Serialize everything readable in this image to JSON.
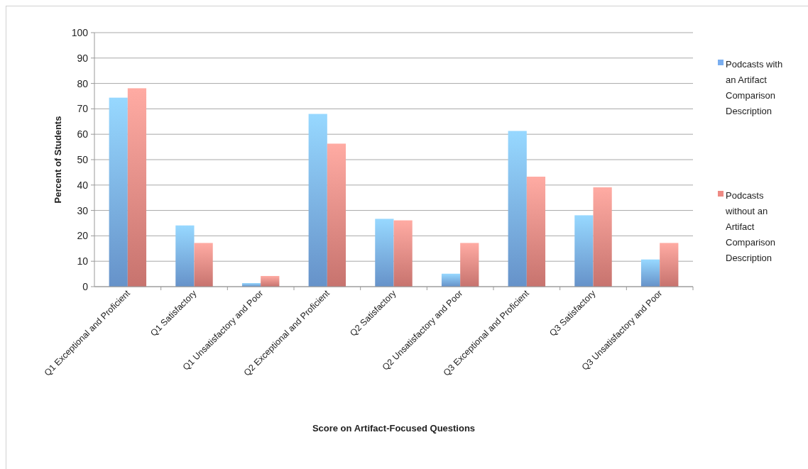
{
  "chart_data": {
    "type": "bar",
    "xlabel": "Score on Artifact-Focused Questions",
    "ylabel": "Percent of Students",
    "categories": [
      "Q1 Exceptional and Proficient",
      "Q1 Satisfactory",
      "Q1 Unsatisfactory and Poor",
      "Q2 Exceptional and Proficient",
      "Q2 Satisfactory",
      "Q2 Unsatisfactory and Poor",
      "Q3 Exceptional and Proficient",
      "Q3 Satisfactory",
      "Q3 Unsatisfactory and Poor"
    ],
    "series": [
      {
        "name": "Podcasts with an Artifact Comparison Description",
        "color": "#7aaef0",
        "values": [
          74.4,
          24.1,
          1.4,
          68,
          26.7,
          5.1,
          61.3,
          28.1,
          10.7
        ]
      },
      {
        "name": "Podcasts without an Artifact Comparison Description",
        "color": "#ee8a84",
        "values": [
          78.1,
          17.2,
          4.2,
          56.3,
          26.1,
          17.2,
          43.3,
          39.1,
          17.2
        ]
      }
    ],
    "ylim": [
      0,
      100
    ],
    "yticks": [
      0,
      10,
      20,
      30,
      40,
      50,
      60,
      70,
      80,
      90,
      100
    ],
    "grid": "y",
    "legend": "right"
  }
}
